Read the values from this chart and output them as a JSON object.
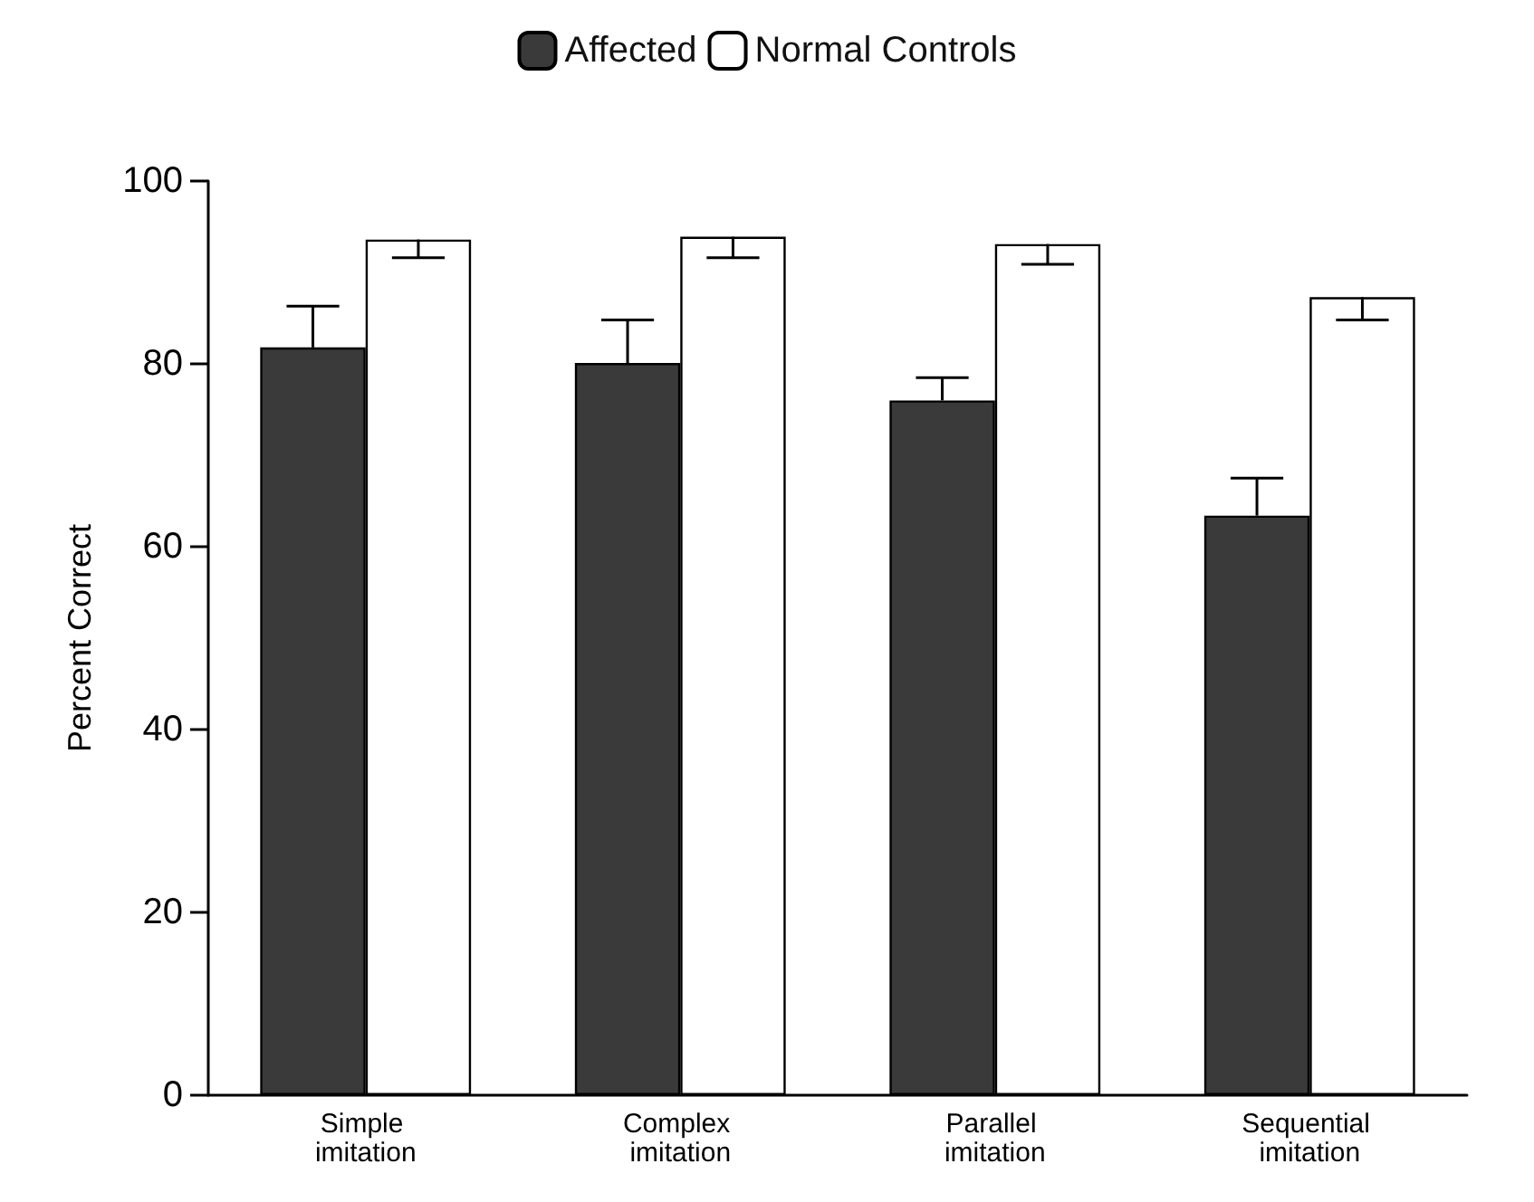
{
  "chart_data": {
    "type": "bar",
    "ylabel": "Percent Correct",
    "categories": [
      "Simple imitation",
      "Complex imitation",
      "Parallel imitation",
      "Sequential imitation"
    ],
    "series": [
      {
        "name": "Affected",
        "color": "#3a3a3a",
        "values": [
          81.8,
          80.1,
          76.0,
          63.4
        ],
        "errors": [
          [
            81.8,
            86.3
          ],
          [
            80.1,
            84.8
          ],
          [
            76.0,
            78.5
          ],
          [
            63.4,
            67.5
          ]
        ]
      },
      {
        "name": "Normal Controls",
        "color": "#ffffff",
        "values": [
          93.6,
          93.9,
          93.1,
          87.3
        ],
        "errors": [
          [
            91.6,
            93.6
          ],
          [
            91.6,
            93.9
          ],
          [
            90.9,
            93.1
          ],
          [
            84.8,
            87.3
          ]
        ]
      }
    ],
    "ylim": [
      0,
      100
    ],
    "yticks": [
      0,
      20,
      40,
      60,
      80,
      100
    ],
    "grid": false,
    "legend": "top"
  }
}
